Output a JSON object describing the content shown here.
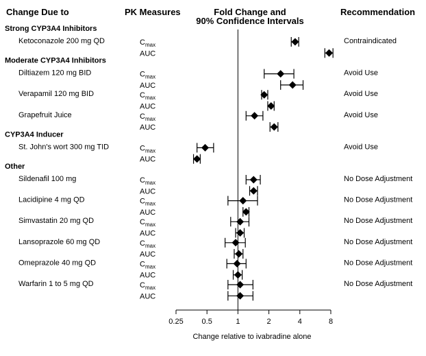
{
  "headers": {
    "col1": "Change Due to",
    "col2": "PK Measures",
    "col3_line1": "Fold Change and",
    "col3_line2": "90% Confidence Intervals",
    "col4": "Recommendation"
  },
  "chart_data": {
    "type": "forest",
    "xscale": "log2",
    "xlim": [
      0.25,
      8
    ],
    "xticks": [
      0.25,
      0.5,
      1,
      2,
      4,
      8
    ],
    "xtick_labels": [
      "0.25",
      "0.5",
      "1",
      "2",
      "4",
      "8"
    ],
    "xlabel": "Change relative to ivabradine alone",
    "reference_line": 1,
    "groups": [
      {
        "title": "Strong CYP3A4 Inhibitors",
        "drugs": [
          {
            "name": "Ketoconazole 200 mg QD",
            "recommendation": "Contraindicated",
            "cmax": {
              "est": 3.6,
              "lo": 3.3,
              "hi": 3.9
            },
            "auc": {
              "est": 7.7,
              "lo": 7.0,
              "hi": 8.4
            }
          }
        ]
      },
      {
        "title": "Moderate CYP3A4 Inhibitors",
        "drugs": [
          {
            "name": "Diltiazem 120 mg BID",
            "recommendation": "Avoid Use",
            "cmax": {
              "est": 2.6,
              "lo": 1.8,
              "hi": 3.5
            },
            "auc": {
              "est": 3.4,
              "lo": 2.6,
              "hi": 4.3
            }
          },
          {
            "name": "Verapamil 120 mg BID",
            "recommendation": "Avoid Use",
            "cmax": {
              "est": 1.8,
              "lo": 1.7,
              "hi": 1.95
            },
            "auc": {
              "est": 2.1,
              "lo": 1.95,
              "hi": 2.25
            }
          },
          {
            "name": "Grapefruit Juice",
            "recommendation": "Avoid Use",
            "cmax": {
              "est": 1.45,
              "lo": 1.2,
              "hi": 1.75
            },
            "auc": {
              "est": 2.25,
              "lo": 2.05,
              "hi": 2.45
            }
          }
        ]
      },
      {
        "title": "CYP3A4 Inducer",
        "drugs": [
          {
            "name": "St. John's wort 300 mg TID",
            "recommendation": "Avoid Use",
            "cmax": {
              "est": 0.48,
              "lo": 0.4,
              "hi": 0.58
            },
            "auc": {
              "est": 0.4,
              "lo": 0.37,
              "hi": 0.43
            }
          }
        ]
      },
      {
        "title": "Other",
        "drugs": [
          {
            "name": "Sildenafil 100 mg",
            "recommendation": "No Dose Adjustment",
            "cmax": {
              "est": 1.42,
              "lo": 1.2,
              "hi": 1.65
            },
            "auc": {
              "est": 1.42,
              "lo": 1.3,
              "hi": 1.55
            }
          },
          {
            "name": "Lacidipine 4 mg QD",
            "recommendation": "No Dose Adjustment",
            "cmax": {
              "est": 1.12,
              "lo": 0.8,
              "hi": 1.55
            },
            "auc": {
              "est": 1.2,
              "lo": 1.12,
              "hi": 1.28
            }
          },
          {
            "name": "Simvastatin 20 mg QD",
            "recommendation": "No Dose Adjustment",
            "cmax": {
              "est": 1.05,
              "lo": 0.85,
              "hi": 1.28
            },
            "auc": {
              "est": 1.05,
              "lo": 0.95,
              "hi": 1.15
            }
          },
          {
            "name": "Lansoprazole 60 mg QD",
            "recommendation": "No Dose Adjustment",
            "cmax": {
              "est": 0.95,
              "lo": 0.75,
              "hi": 1.18
            },
            "auc": {
              "est": 1.02,
              "lo": 0.92,
              "hi": 1.12
            }
          },
          {
            "name": "Omeprazole 40 mg QD",
            "recommendation": "No Dose Adjustment",
            "cmax": {
              "est": 0.98,
              "lo": 0.78,
              "hi": 1.2
            },
            "auc": {
              "est": 1.0,
              "lo": 0.9,
              "hi": 1.1
            }
          },
          {
            "name": "Warfarin 1 to 5 mg QD",
            "recommendation": "No Dose Adjustment",
            "cmax": {
              "est": 1.05,
              "lo": 0.8,
              "hi": 1.4
            },
            "auc": {
              "est": 1.05,
              "lo": 0.8,
              "hi": 1.4
            }
          }
        ]
      }
    ]
  }
}
